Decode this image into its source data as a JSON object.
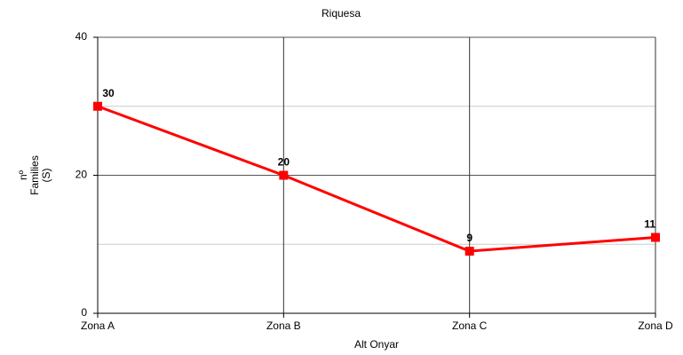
{
  "chart_data": {
    "type": "line",
    "title": "Riquesa",
    "x_label": "Alt Onyar",
    "y_label": [
      "nº",
      "Families",
      "(S)"
    ],
    "categories": [
      "Zona A",
      "Zona B",
      "Zona C",
      "Zona D"
    ],
    "series": [
      {
        "name": "Riquesa",
        "color": "#ff0000",
        "values": [
          30,
          20,
          9,
          11
        ]
      }
    ],
    "ylim": [
      0,
      40
    ],
    "yticks": [
      0,
      20,
      40
    ],
    "minor_yticks": [
      10,
      30
    ],
    "grid": true
  }
}
